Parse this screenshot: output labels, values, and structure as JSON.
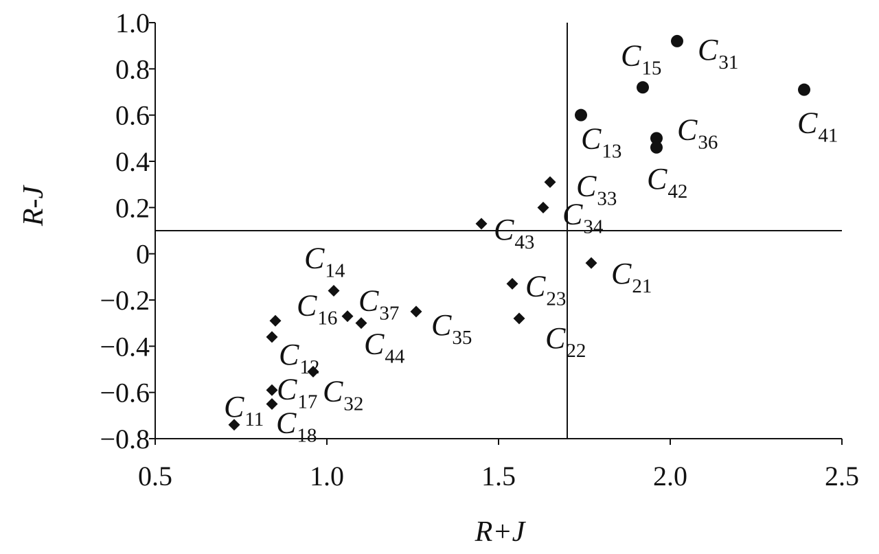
{
  "chart_data": {
    "type": "scatter",
    "title": "",
    "xlabel": "R+J",
    "ylabel": "R-J",
    "xlim": [
      0.5,
      2.5
    ],
    "ylim": [
      -0.8,
      1.0
    ],
    "xticks": [
      "0.5",
      "1.0",
      "1.5",
      "2.0",
      "2.5"
    ],
    "yticks": [
      "−0.8",
      "−0.6",
      "−0.4",
      "−0.2",
      "0",
      "0.2",
      "0.4",
      "0.6",
      "0.8",
      "1.0"
    ],
    "grid": false,
    "reference_lines": {
      "x": 1.7,
      "y": 0.1
    },
    "marker_color": "#111111",
    "series": [
      {
        "marker": "circle",
        "points": [
          {
            "label": "C",
            "sub": "31",
            "x": 2.02,
            "y": 0.92
          },
          {
            "label": "C",
            "sub": "15",
            "x": 1.92,
            "y": 0.72
          },
          {
            "label": "C",
            "sub": "41",
            "x": 2.39,
            "y": 0.71
          },
          {
            "label": "C",
            "sub": "13",
            "x": 1.74,
            "y": 0.6
          },
          {
            "label": "C",
            "sub": "36",
            "x": 1.96,
            "y": 0.5
          },
          {
            "label": "C",
            "sub": "42",
            "x": 1.96,
            "y": 0.46
          }
        ]
      },
      {
        "marker": "diamond",
        "points": [
          {
            "label": "C",
            "sub": "33",
            "x": 1.65,
            "y": 0.31
          },
          {
            "label": "C",
            "sub": "34",
            "x": 1.63,
            "y": 0.2
          },
          {
            "label": "C",
            "sub": "43",
            "x": 1.45,
            "y": 0.13
          },
          {
            "label": "C",
            "sub": "21",
            "x": 1.77,
            "y": -0.04
          },
          {
            "label": "C",
            "sub": "23",
            "x": 1.54,
            "y": -0.13
          },
          {
            "label": "C",
            "sub": "22",
            "x": 1.56,
            "y": -0.28
          },
          {
            "label": "C",
            "sub": "14",
            "x": 1.02,
            "y": -0.16
          },
          {
            "label": "C",
            "sub": "37",
            "x": 1.06,
            "y": -0.27
          },
          {
            "label": "C",
            "sub": "44",
            "x": 1.1,
            "y": -0.3
          },
          {
            "label": "C",
            "sub": "35",
            "x": 1.26,
            "y": -0.25
          },
          {
            "label": "C",
            "sub": "16",
            "x": 0.85,
            "y": -0.29
          },
          {
            "label": "C",
            "sub": "12",
            "x": 0.84,
            "y": -0.36
          },
          {
            "label": "C",
            "sub": "32",
            "x": 0.96,
            "y": -0.51
          },
          {
            "label": "C",
            "sub": "17",
            "x": 0.84,
            "y": -0.59
          },
          {
            "label": "C",
            "sub": "18",
            "x": 0.84,
            "y": -0.65
          },
          {
            "label": "C",
            "sub": "11",
            "x": 0.73,
            "y": -0.74
          }
        ]
      }
    ]
  }
}
